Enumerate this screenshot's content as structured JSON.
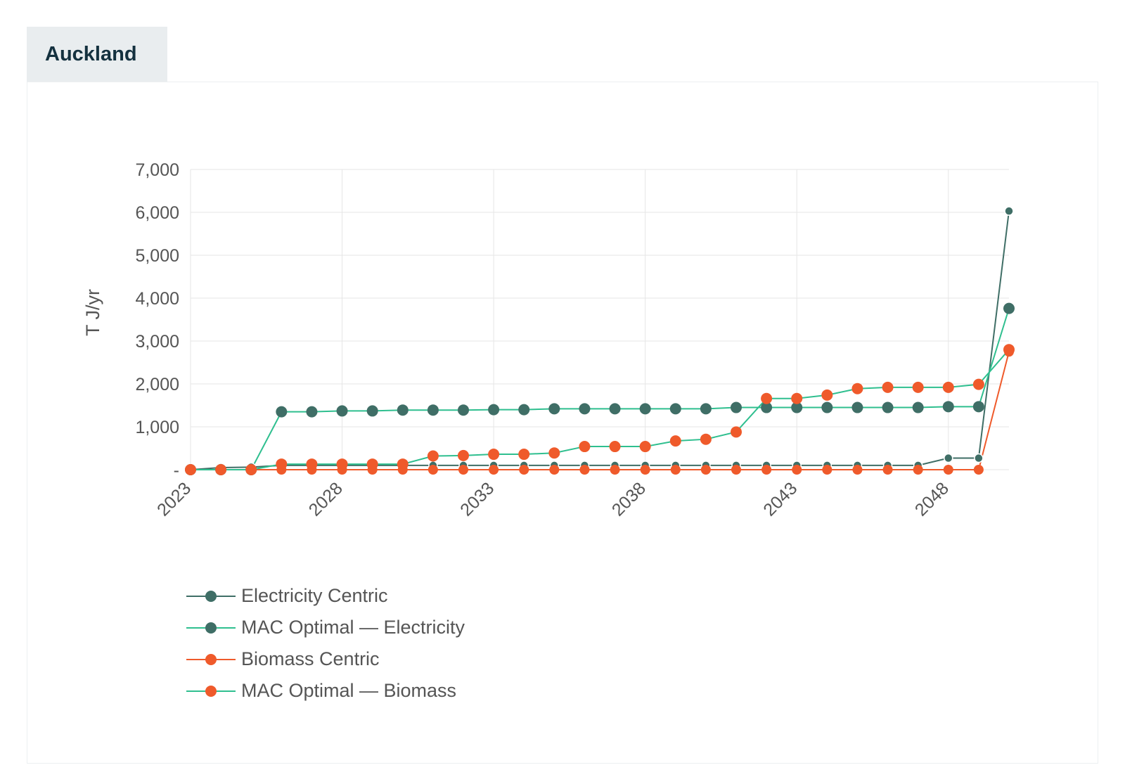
{
  "tab": {
    "title": "Auckland"
  },
  "colors": {
    "electricity_centric": "#3f6e66",
    "mac_electricity_line": "#2fbf8f",
    "mac_electricity_marker": "#3f6e66",
    "biomass_centric": "#ef5a2b",
    "mac_biomass_line": "#2fbf8f",
    "mac_biomass_marker": "#ef5a2b",
    "grid": "#e6e6e6",
    "axis_text": "#555555"
  },
  "chart_data": {
    "type": "line",
    "ylabel": "T J/yr",
    "xlabel": "",
    "ylim": [
      0,
      7000
    ],
    "yticks": [
      0,
      1000,
      2000,
      3000,
      4000,
      5000,
      6000,
      7000
    ],
    "ytick_labels": [
      "-",
      "1,000",
      "2,000",
      "3,000",
      "4,000",
      "5,000",
      "6,000",
      "7,000"
    ],
    "xlim": [
      2023,
      2050
    ],
    "xticks": [
      2023,
      2028,
      2033,
      2038,
      2043,
      2048
    ],
    "xtick_labels": [
      "2023",
      "2028",
      "2033",
      "2038",
      "2043",
      "2048"
    ],
    "x": [
      2023,
      2024,
      2025,
      2026,
      2027,
      2028,
      2029,
      2030,
      2031,
      2032,
      2033,
      2034,
      2035,
      2036,
      2037,
      2038,
      2039,
      2040,
      2041,
      2042,
      2043,
      2044,
      2045,
      2046,
      2047,
      2048,
      2049,
      2050
    ],
    "grid": true,
    "legend_position": "bottom-left",
    "series": [
      {
        "name": "Electricity Centric",
        "key": "electricity_centric",
        "values": [
          0,
          50,
          60,
          100,
          100,
          100,
          100,
          100,
          100,
          100,
          100,
          100,
          100,
          100,
          100,
          100,
          100,
          100,
          100,
          100,
          100,
          100,
          100,
          100,
          100,
          270,
          270,
          6030
        ]
      },
      {
        "name": "MAC Optimal — Electricity",
        "key": "mac_electricity",
        "values": [
          0,
          0,
          0,
          1350,
          1350,
          1370,
          1370,
          1390,
          1390,
          1390,
          1400,
          1400,
          1420,
          1420,
          1420,
          1420,
          1420,
          1420,
          1450,
          1450,
          1450,
          1450,
          1450,
          1450,
          1450,
          1470,
          1470,
          3760
        ]
      },
      {
        "name": "Biomass Centric",
        "key": "biomass_centric",
        "values": [
          0,
          0,
          0,
          0,
          0,
          0,
          0,
          0,
          0,
          0,
          0,
          0,
          0,
          0,
          0,
          0,
          0,
          0,
          0,
          0,
          0,
          0,
          0,
          0,
          0,
          0,
          0,
          2750
        ]
      },
      {
        "name": "MAC Optimal — Biomass",
        "key": "mac_biomass",
        "values": [
          0,
          0,
          0,
          130,
          130,
          130,
          130,
          130,
          320,
          330,
          360,
          360,
          390,
          540,
          540,
          540,
          670,
          710,
          880,
          1660,
          1660,
          1740,
          1890,
          1920,
          1920,
          1920,
          1990,
          2800
        ]
      }
    ]
  }
}
